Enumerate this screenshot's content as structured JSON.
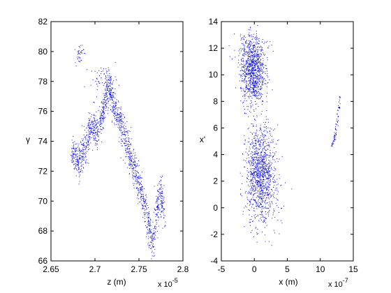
{
  "chart_data": [
    {
      "type": "scatter",
      "panel": "left",
      "xlabel": "z (m)",
      "ylabel": "γ",
      "x_exponent_label": "x 10",
      "x_exponent_power": "-5",
      "xlim": [
        2.65,
        2.8
      ],
      "ylim": [
        66,
        82
      ],
      "xticks": [
        "2.65",
        "2.7",
        "2.75",
        "2.8"
      ],
      "yticks": [
        "66",
        "68",
        "70",
        "72",
        "74",
        "76",
        "78",
        "80",
        "82"
      ],
      "xtick_values": [
        2.65,
        2.7,
        2.75,
        2.8
      ],
      "ytick_values": [
        66,
        68,
        70,
        72,
        74,
        76,
        78,
        80,
        82
      ],
      "marker_color": "#0000ff",
      "trend_x": [
        2.673,
        2.678,
        2.683,
        2.688,
        2.693,
        2.698,
        2.703,
        2.708,
        2.712,
        2.716,
        2.72,
        2.725,
        2.73,
        2.735,
        2.74,
        2.745,
        2.75,
        2.755,
        2.76,
        2.765,
        2.77,
        2.775,
        2.778
      ],
      "trend_y": [
        73.5,
        73.0,
        72.5,
        73.5,
        74.8,
        75.0,
        74.5,
        76.0,
        77.0,
        77.8,
        76.5,
        75.8,
        75.0,
        74.0,
        73.0,
        72.0,
        71.0,
        70.0,
        68.5,
        67.0,
        69.5,
        71.0,
        69.0
      ],
      "clusters": [
        {
          "x": 2.682,
          "y": 79.9,
          "sx": 0.0025,
          "sy": 0.35,
          "n": 40
        },
        {
          "x": 2.71,
          "y": 78.2,
          "sx": 0.008,
          "sy": 0.4,
          "n": 60
        }
      ]
    },
    {
      "type": "scatter",
      "panel": "right",
      "xlabel": "x (m)",
      "ylabel": "x'",
      "x_exponent_label": "x 10",
      "x_exponent_power": "-7",
      "xlim": [
        -5,
        15
      ],
      "ylim": [
        -4,
        14
      ],
      "xticks": [
        "-5",
        "0",
        "5",
        "10",
        "15"
      ],
      "yticks": [
        "-4",
        "-2",
        "0",
        "2",
        "4",
        "6",
        "8",
        "10",
        "12",
        "14"
      ],
      "xtick_values": [
        -5,
        0,
        5,
        10,
        15
      ],
      "ytick_values": [
        -4,
        -2,
        0,
        2,
        4,
        6,
        8,
        10,
        12,
        14
      ],
      "marker_color": "#0000ff",
      "clusters": [
        {
          "x": -0.3,
          "y": 10.2,
          "sx": 0.9,
          "sy": 1.3,
          "n": 900
        },
        {
          "x": 0.9,
          "y": 2.9,
          "sx": 1.1,
          "sy": 1.6,
          "n": 1000
        },
        {
          "x": -0.5,
          "y": 12.0,
          "sx": 1.4,
          "sy": 0.7,
          "n": 120
        },
        {
          "x": 1.0,
          "y": 0.3,
          "sx": 1.5,
          "sy": 1.2,
          "n": 180
        }
      ],
      "streak_x": [
        11.7,
        12.2,
        12.6,
        13.0
      ],
      "streak_y": [
        4.7,
        5.4,
        6.8,
        8.4
      ]
    }
  ]
}
